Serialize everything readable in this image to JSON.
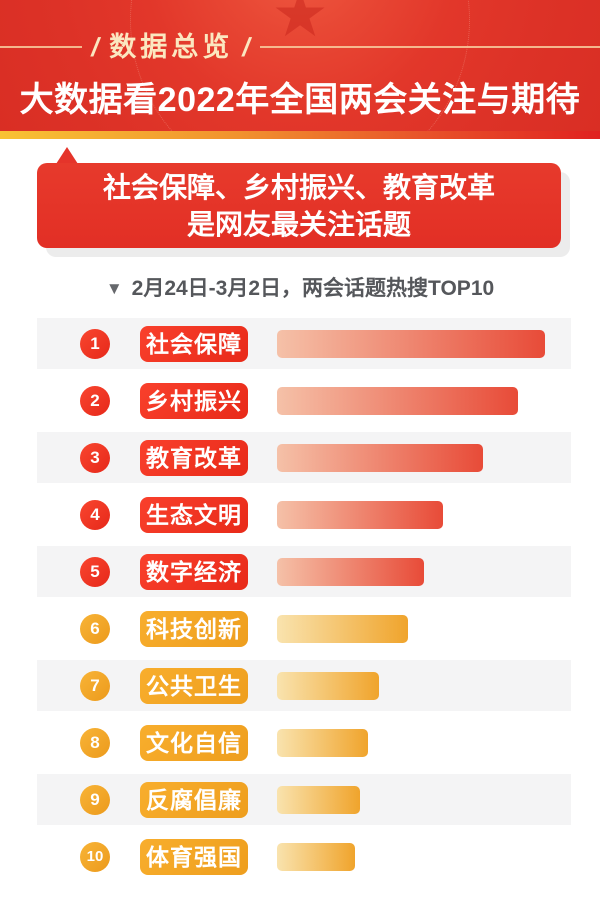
{
  "header": {
    "slash": "/",
    "section_label": "数据总览",
    "title": "大数据看2022年全国两会关注与期待",
    "emblem_icon": "★",
    "bg_color": "#e2372a",
    "label_color": "#fbe7c0",
    "strip_gradient": [
      "#f8c234",
      "#f1922e",
      "#e02220"
    ]
  },
  "subtitle_box": {
    "line1": "社会保障、乡村振兴、教育改革",
    "line2": "是网友最关注话题",
    "bg_color": "#e5342a",
    "text_color": "#ffffff"
  },
  "caption": {
    "arrow": "▼",
    "text": "2月24日-3月2日，两会话题热搜TOP10",
    "text_color": "#55575b"
  },
  "chart_data": {
    "type": "bar",
    "orientation": "horizontal",
    "title": "两会话题热搜TOP10",
    "period": "2月24日-3月2日",
    "categories": [
      "社会保障",
      "乡村振兴",
      "教育改革",
      "生态文明",
      "数字经济",
      "科技创新",
      "公共卫生",
      "文化自信",
      "反腐倡廉",
      "体育强国"
    ],
    "values": [
      100,
      90,
      77,
      62,
      55,
      49,
      38,
      34,
      31,
      29
    ],
    "value_note": "relative search heat, % of top bar, estimated from bar lengths (no numeric labels shown)",
    "ranks": [
      1,
      2,
      3,
      4,
      5,
      6,
      7,
      8,
      9,
      10
    ],
    "series_theme": [
      "red",
      "red",
      "red",
      "red",
      "red",
      "orange",
      "orange",
      "orange",
      "orange",
      "orange"
    ],
    "legend": "none",
    "grid": "off",
    "row_stripe_color": "#f4f4f5",
    "red_bar_gradient": [
      "#f5c1a8",
      "#e84b38"
    ],
    "orange_bar_gradient": [
      "#f9e3ae",
      "#f0a42c"
    ]
  }
}
